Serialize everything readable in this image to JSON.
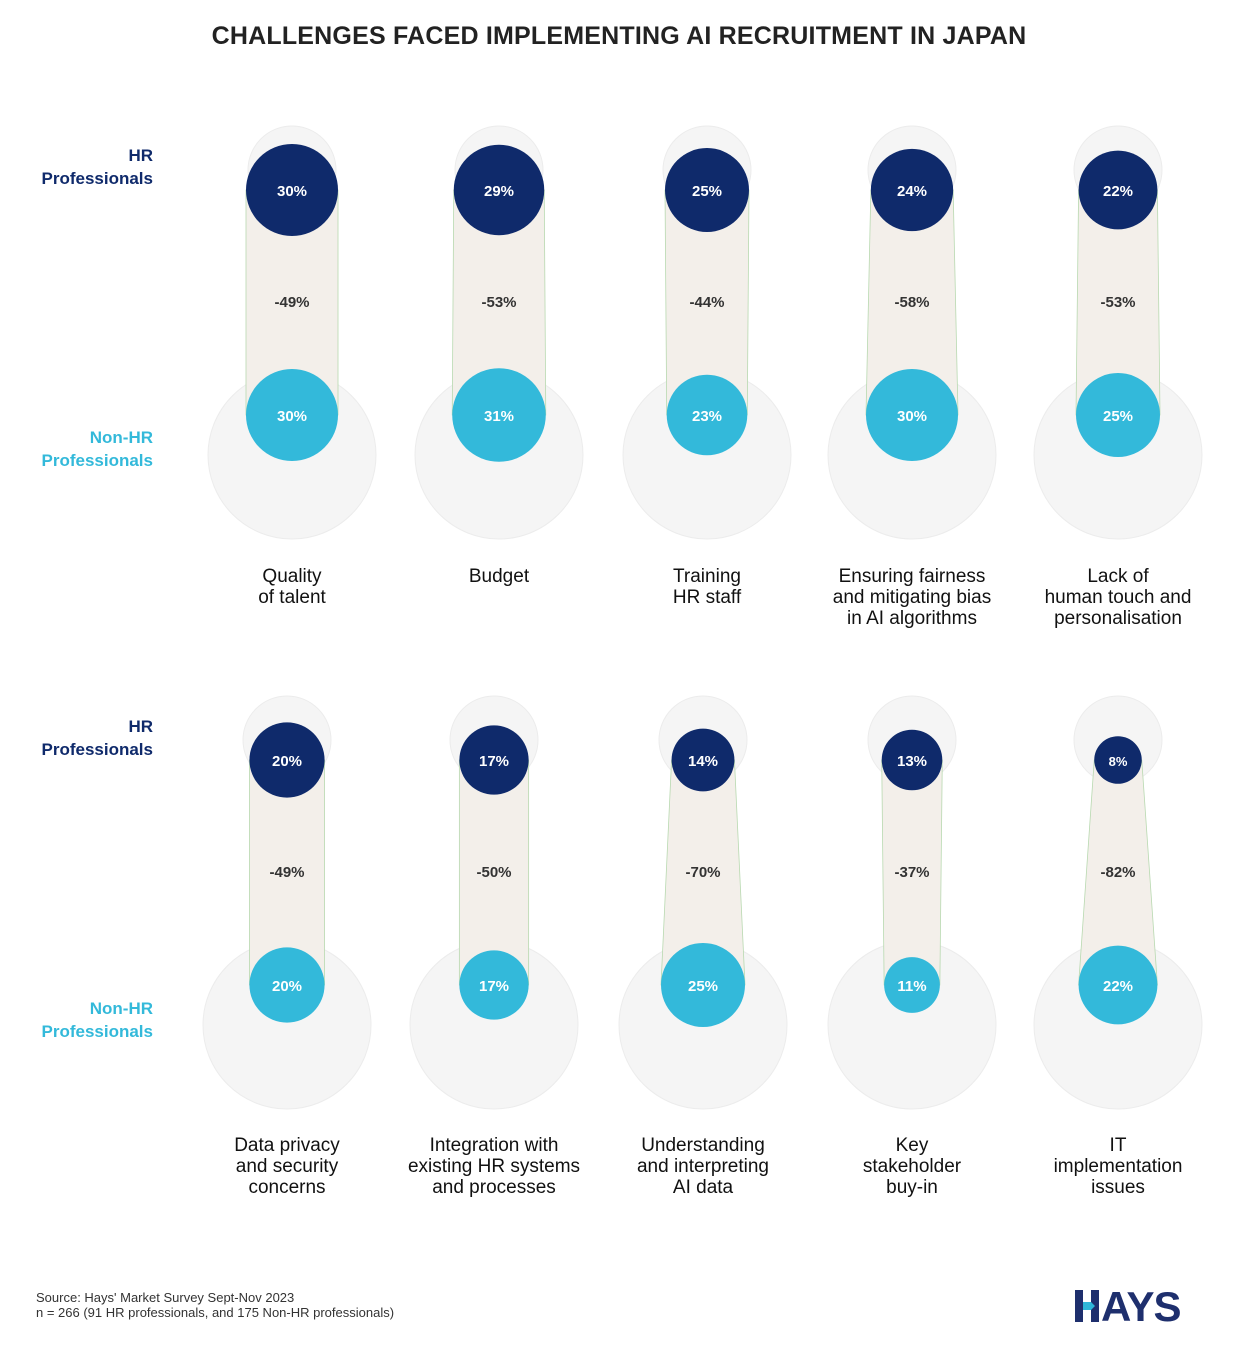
{
  "title": "CHALLENGES FACED IMPLEMENTING AI RECRUITMENT IN JAPAN",
  "row_labels": {
    "hr": [
      "HR",
      "Professionals"
    ],
    "non_hr": [
      "Non-HR",
      "Professionals"
    ]
  },
  "colors": {
    "hr": "#0f2a6b",
    "non_hr": "#33b9da",
    "background_circle": "#f5f5f5",
    "connector_fill": "#f3efea",
    "connector_stroke": "#b8d9b0"
  },
  "chart_data": {
    "type": "bubble-comparison",
    "series_names": [
      "HR Professionals",
      "Non-HR Professionals"
    ],
    "categories": [
      {
        "label_lines": [
          "Quality",
          "of talent"
        ],
        "hr": "30%",
        "non_hr": "30%",
        "change": "-49%"
      },
      {
        "label_lines": [
          "Budget"
        ],
        "hr": "29%",
        "non_hr": "31%",
        "change": "-53%"
      },
      {
        "label_lines": [
          "Training",
          "HR staff"
        ],
        "hr": "25%",
        "non_hr": "23%",
        "change": "-44%"
      },
      {
        "label_lines": [
          "Ensuring fairness",
          "and mitigating bias",
          "in AI algorithms"
        ],
        "hr": "24%",
        "non_hr": "30%",
        "change": "-58%"
      },
      {
        "label_lines": [
          "Lack of",
          "human touch and",
          "personalisation"
        ],
        "hr": "22%",
        "non_hr": "25%",
        "change": "-53%"
      },
      {
        "label_lines": [
          "Data privacy",
          "and security",
          "concerns"
        ],
        "hr": "20%",
        "non_hr": "20%",
        "change": "-49%"
      },
      {
        "label_lines": [
          "Integration with",
          "existing HR systems",
          "and processes"
        ],
        "hr": "17%",
        "non_hr": "17%",
        "change": "-50%"
      },
      {
        "label_lines": [
          "Understanding",
          "and interpreting",
          "AI data"
        ],
        "hr": "14%",
        "non_hr": "25%",
        "change": "-70%"
      },
      {
        "label_lines": [
          "Key",
          "stakeholder",
          "buy-in"
        ],
        "hr": "13%",
        "non_hr": "11%",
        "change": "-37%"
      },
      {
        "label_lines": [
          "IT",
          "implementation",
          "issues"
        ],
        "hr": "8%",
        "non_hr": "22%",
        "change": "-82%"
      }
    ]
  },
  "source": [
    "Source: Hays' Market Survey Sept-Nov 2023",
    "n = 266 (91 HR professionals, and 175 Non-HR professionals)"
  ],
  "logo": {
    "text": "HAYS",
    "color": "#1e2f6d",
    "accent": "#2fb7d8"
  }
}
